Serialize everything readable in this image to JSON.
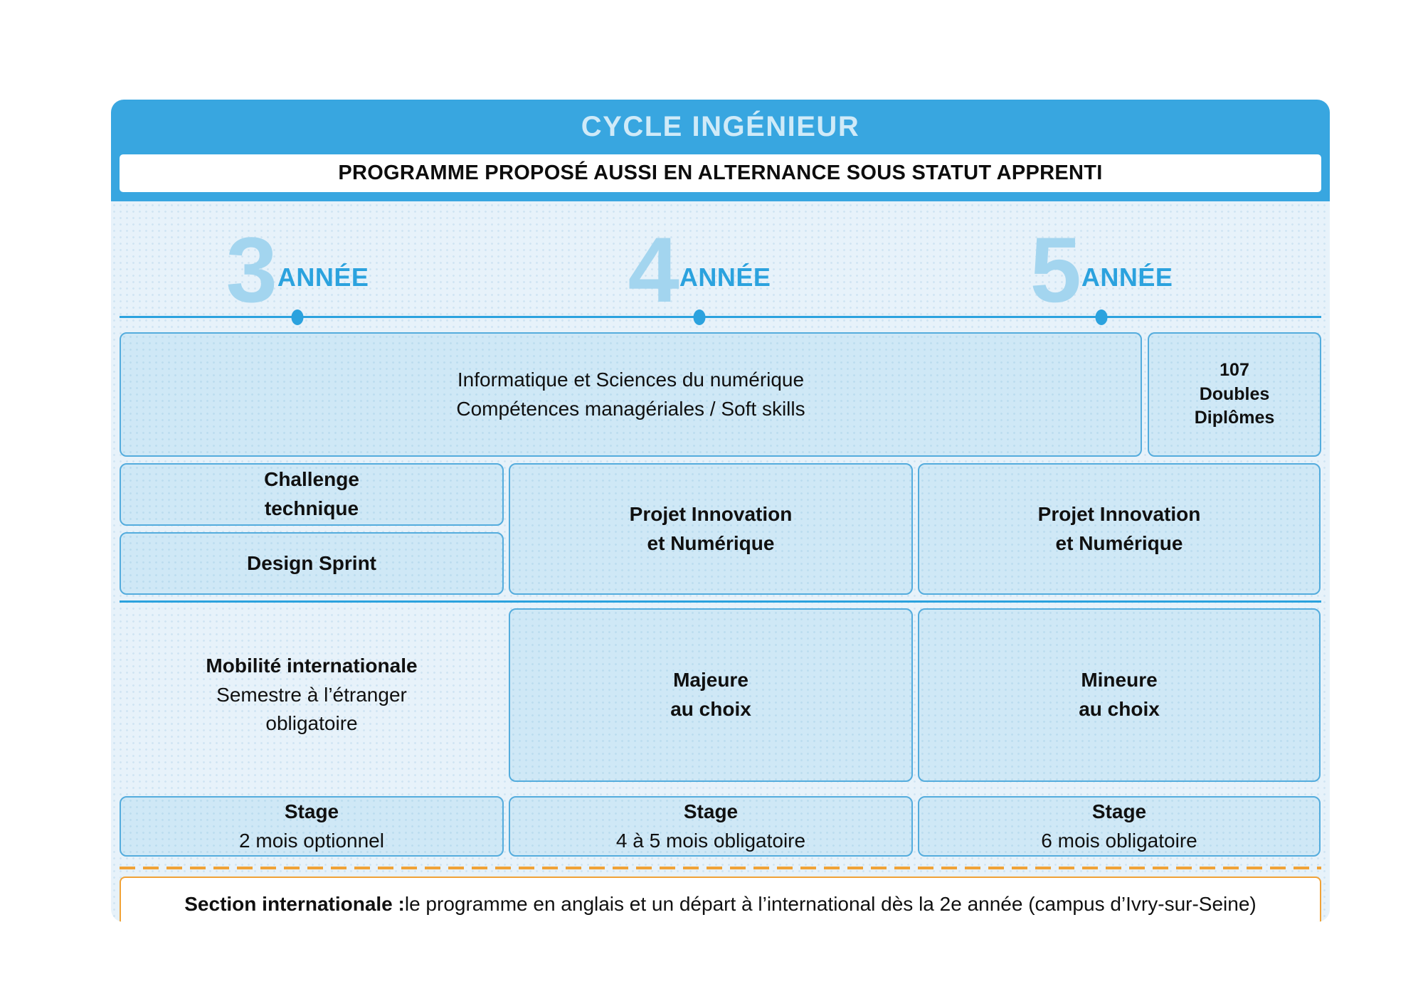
{
  "header": {
    "title": "CYCLE INGÉNIEUR",
    "banner": "PROGRAMME PROPOSÉ AUSSI EN ALTERNANCE SOUS STATUT APPRENTI"
  },
  "years": [
    {
      "number": "3",
      "label": "ANNÉE"
    },
    {
      "number": "4",
      "label": "ANNÉE"
    },
    {
      "number": "5",
      "label": "ANNÉE"
    }
  ],
  "row1": {
    "core_line1": "Informatique et Sciences du numérique",
    "core_line2": "Compétences managériales / Soft skills",
    "dd_line1": "107",
    "dd_line2": "Doubles",
    "dd_line3": "Diplômes"
  },
  "row2": {
    "challenge_line1": "Challenge",
    "challenge_line2": "technique",
    "design_sprint": "Design Sprint",
    "projet_y4_line1": "Projet Innovation",
    "projet_y4_line2": "et Numérique",
    "projet_y5_line1": "Projet Innovation",
    "projet_y5_line2": "et Numérique"
  },
  "row3": {
    "mobility_line1": "Mobilité internationale",
    "mobility_line2": "Semestre à l’étranger",
    "mobility_line3": "obligatoire",
    "majeure_line1": "Majeure",
    "majeure_line2": "au choix",
    "mineure_line1": "Mineure",
    "mineure_line2": "au choix"
  },
  "row4": {
    "stage_y3_title": "Stage",
    "stage_y3_sub": "2 mois optionnel",
    "stage_y4_title": "Stage",
    "stage_y4_sub": "4 à 5 mois obligatoire",
    "stage_y5_title": "Stage",
    "stage_y5_sub": "6 mois obligatoire"
  },
  "footer": {
    "bold": "Section internationale :",
    "rest": " le programme en anglais et un départ à l’international dès la 2e année (campus d’Ivry-sur-Seine)"
  },
  "colors": {
    "header_blue": "#38a6e0",
    "body_bg": "#e7f2fa",
    "box_fill": "#cfe8f6",
    "box_border": "#54acdd",
    "year_number": "#a3d5ef",
    "year_label": "#2ba2de",
    "timeline": "#2ba2de",
    "orange": "#f0a237",
    "text_dark": "#101010",
    "title_text": "#cfeaf8"
  }
}
